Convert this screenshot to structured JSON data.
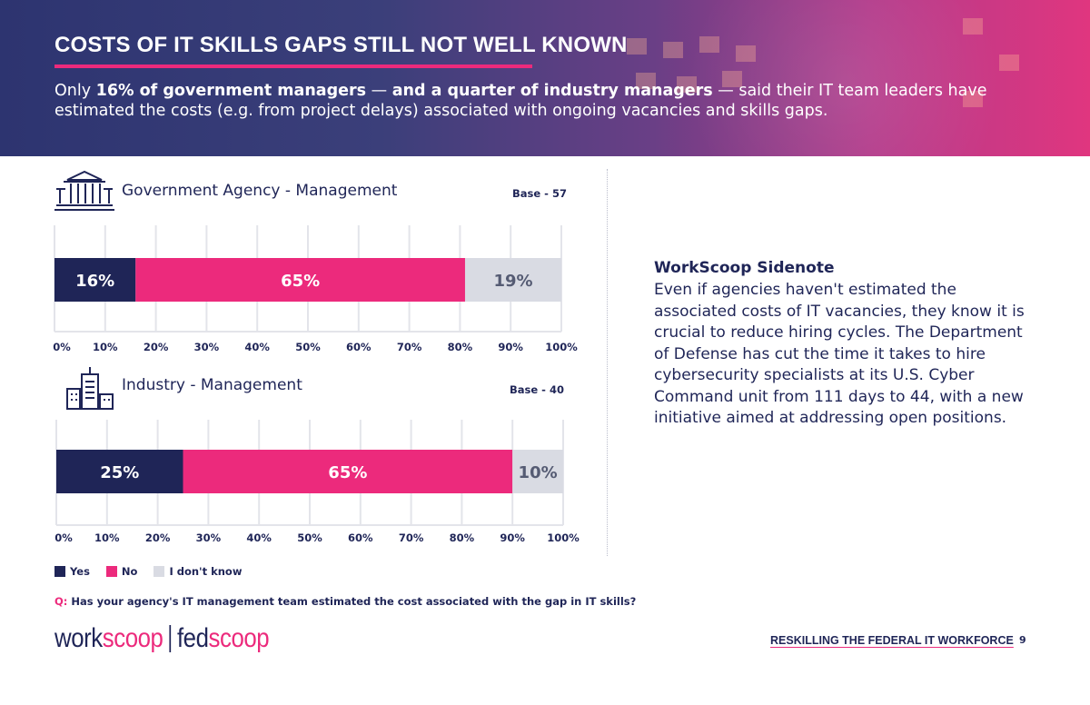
{
  "header": {
    "title": "COSTS OF IT SKILLS GAPS STILL NOT WELL KNOWN",
    "subtitle": {
      "lead": "Only ",
      "bold1": "16% of government managers",
      "mid": " — ",
      "bold2": "and a quarter of industry managers",
      "tail": " — said their IT team leaders have estimated the costs (e.g. from project delays) associated with ongoing vacancies and skills gaps."
    }
  },
  "chart_data": [
    {
      "type": "bar",
      "orientation": "horizontal-stacked",
      "title": "Government Agency - Management",
      "base": "Base - 57",
      "series": [
        {
          "name": "Yes",
          "value": 16,
          "label": "16%"
        },
        {
          "name": "No",
          "value": 65,
          "label": "65%"
        },
        {
          "name": "I don't know",
          "value": 19,
          "label": "19%"
        }
      ],
      "xlim": [
        0,
        100
      ],
      "ticks": [
        "0%",
        "10%",
        "20%",
        "30%",
        "40%",
        "50%",
        "60%",
        "70%",
        "80%",
        "90%",
        "100%"
      ],
      "grid": true
    },
    {
      "type": "bar",
      "orientation": "horizontal-stacked",
      "title": "Industry - Management",
      "base": "Base - 40",
      "series": [
        {
          "name": "Yes",
          "value": 25,
          "label": "25%"
        },
        {
          "name": "No",
          "value": 65,
          "label": "65%"
        },
        {
          "name": "I don't know",
          "value": 10,
          "label": "10%"
        }
      ],
      "xlim": [
        0,
        100
      ],
      "ticks": [
        "0%",
        "10%",
        "20%",
        "30%",
        "40%",
        "50%",
        "60%",
        "70%",
        "80%",
        "90%",
        "100%"
      ],
      "grid": true
    }
  ],
  "legend": [
    {
      "label": "Yes",
      "color": "#1f2557"
    },
    {
      "label": "No",
      "color": "#ec2a7c"
    },
    {
      "label": "I don't know",
      "color": "#d9dbe3"
    }
  ],
  "colors": {
    "yes": "#1f2557",
    "no": "#ec2a7c",
    "dontknow": "#d9dbe3",
    "grid": "#e3e4ea",
    "tick": "#1f2557"
  },
  "icons": {
    "gov": "government-building-icon",
    "industry": "office-buildings-icon"
  },
  "question": {
    "prefix": "Q:",
    "text": "Has your agency's IT management team estimated the cost associated with the gap in IT skills?"
  },
  "sidenote": {
    "title": "WorkScoop Sidenote",
    "body": "Even if agencies haven't estimated the associated costs of IT vacancies, they know it is crucial to reduce hiring cycles. The Department of Defense has cut the time it takes to hire cybersecurity specialists at its U.S. Cyber Command unit from 111 days to 44, with a new initiative aimed at addressing open positions."
  },
  "footer": {
    "brand1_a": "work",
    "brand1_b": "scoop",
    "brand2_a": "fed",
    "brand2_b": "scoop",
    "section": "RESKILLING THE FEDERAL IT WORKFORCE",
    "page": "9"
  }
}
